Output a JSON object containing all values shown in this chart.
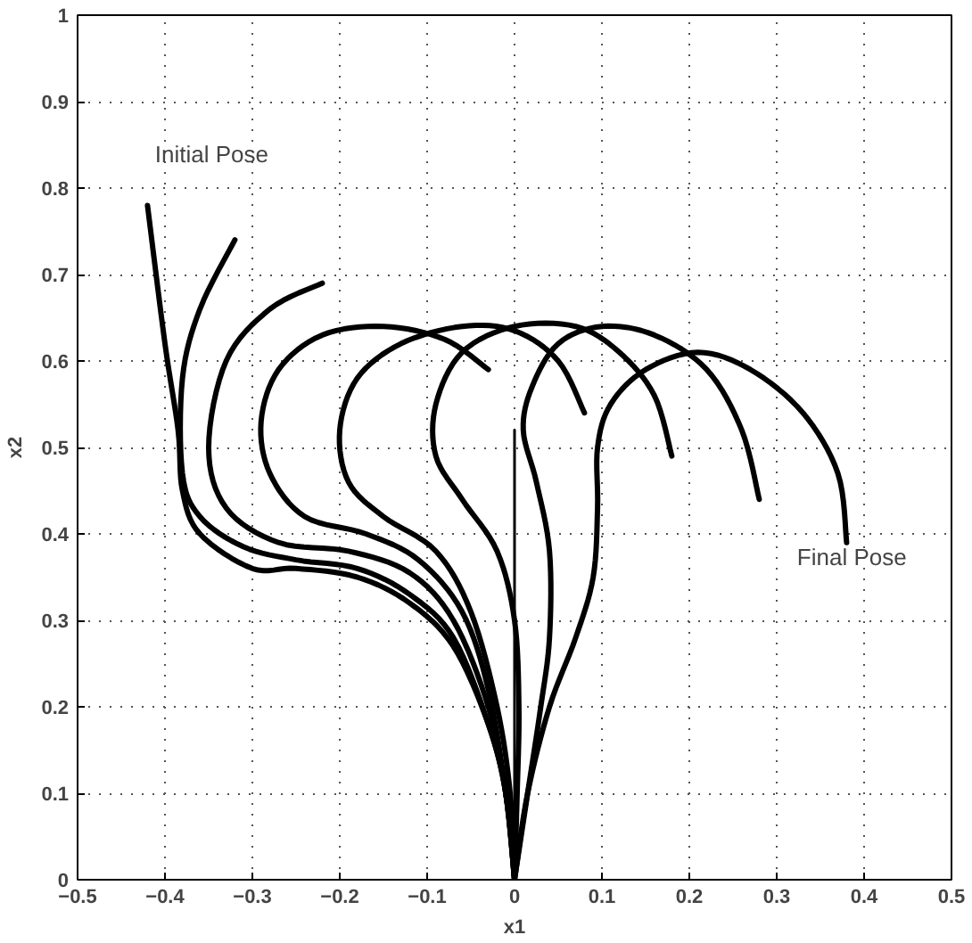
{
  "chart_data": {
    "type": "line",
    "xlabel": "x1",
    "ylabel": "x2",
    "xlim": [
      -0.5,
      0.5
    ],
    "ylim": [
      0,
      1
    ],
    "xticks": [
      {
        "value": -0.5,
        "label": "−0.5"
      },
      {
        "value": -0.4,
        "label": "−0.4"
      },
      {
        "value": -0.3,
        "label": "−0.3"
      },
      {
        "value": -0.2,
        "label": "−0.2"
      },
      {
        "value": -0.1,
        "label": "−0.1"
      },
      0,
      0.1,
      0.2,
      0.3,
      0.4,
      0.5
    ],
    "yticks": [
      0,
      0.1,
      0.2,
      0.3,
      0.4,
      0.5,
      0.6,
      0.7,
      0.8,
      0.9,
      1
    ],
    "grid": true,
    "marker": "none",
    "line_style": "solid",
    "annotations": [
      "Initial Pose",
      "Final Pose"
    ],
    "series": [
      {
        "color": "#000000",
        "x": [
          -0.42,
          -0.4,
          -0.385,
          -0.38,
          -0.36,
          -0.3,
          -0.25,
          -0.18,
          -0.12,
          -0.07,
          -0.03,
          -0.01,
          0
        ],
        "values": [
          0.78,
          0.62,
          0.52,
          0.45,
          0.4,
          0.36,
          0.36,
          0.35,
          0.32,
          0.27,
          0.18,
          0.1,
          0
        ]
      },
      {
        "color": "#000000",
        "x": [
          -0.32,
          -0.36,
          -0.38,
          -0.38,
          -0.36,
          -0.31,
          -0.25,
          -0.18,
          -0.12,
          -0.07,
          -0.03,
          -0.01,
          0
        ],
        "values": [
          0.74,
          0.66,
          0.58,
          0.47,
          0.42,
          0.385,
          0.37,
          0.36,
          0.33,
          0.28,
          0.18,
          0.1,
          0
        ]
      },
      {
        "color": "#000000",
        "x": [
          -0.22,
          -0.28,
          -0.33,
          -0.35,
          -0.33,
          -0.27,
          -0.19,
          -0.12,
          -0.07,
          -0.03,
          -0.01,
          0
        ],
        "values": [
          0.69,
          0.66,
          0.6,
          0.5,
          0.43,
          0.39,
          0.38,
          0.355,
          0.3,
          0.2,
          0.1,
          0
        ]
      },
      {
        "color": "#000000",
        "x": [
          -0.03,
          -0.08,
          -0.15,
          -0.22,
          -0.27,
          -0.29,
          -0.28,
          -0.24,
          -0.17,
          -0.11,
          -0.06,
          -0.03,
          -0.01,
          0
        ],
        "values": [
          0.59,
          0.625,
          0.64,
          0.63,
          0.59,
          0.53,
          0.47,
          0.42,
          0.4,
          0.37,
          0.31,
          0.22,
          0.1,
          0
        ]
      },
      {
        "color": "#000000",
        "x": [
          0.08,
          0.05,
          0.0,
          -0.06,
          -0.13,
          -0.18,
          -0.2,
          -0.19,
          -0.15,
          -0.09,
          -0.05,
          -0.02,
          -0.005,
          0
        ],
        "values": [
          0.54,
          0.6,
          0.635,
          0.64,
          0.62,
          0.58,
          0.52,
          0.46,
          0.42,
          0.38,
          0.31,
          0.2,
          0.1,
          0
        ]
      },
      {
        "color": "#000000",
        "x": [
          0.18,
          0.16,
          0.12,
          0.07,
          0.0,
          -0.06,
          -0.09,
          -0.09,
          -0.06,
          -0.02,
          0.0,
          0.005,
          0.003,
          0
        ],
        "values": [
          0.49,
          0.56,
          0.61,
          0.64,
          0.64,
          0.61,
          0.55,
          0.49,
          0.44,
          0.38,
          0.3,
          0.2,
          0.1,
          0
        ]
      },
      {
        "color": "#000000",
        "x": [
          0.28,
          0.26,
          0.22,
          0.16,
          0.1,
          0.05,
          0.02,
          0.01,
          0.025,
          0.04,
          0.04,
          0.03,
          0.015,
          0
        ],
        "values": [
          0.44,
          0.52,
          0.59,
          0.63,
          0.64,
          0.62,
          0.57,
          0.52,
          0.46,
          0.38,
          0.28,
          0.2,
          0.1,
          0
        ]
      },
      {
        "color": "#000000",
        "x": [
          0.38,
          0.37,
          0.33,
          0.27,
          0.21,
          0.15,
          0.11,
          0.095,
          0.095,
          0.09,
          0.07,
          0.04,
          0.015,
          0
        ],
        "values": [
          0.39,
          0.47,
          0.54,
          0.59,
          0.61,
          0.59,
          0.55,
          0.5,
          0.43,
          0.35,
          0.28,
          0.2,
          0.1,
          0
        ]
      },
      {
        "color": "#000000",
        "x": [
          0,
          0,
          0,
          0
        ],
        "values": [
          0,
          0.2,
          0.4,
          0.52
        ]
      }
    ]
  }
}
